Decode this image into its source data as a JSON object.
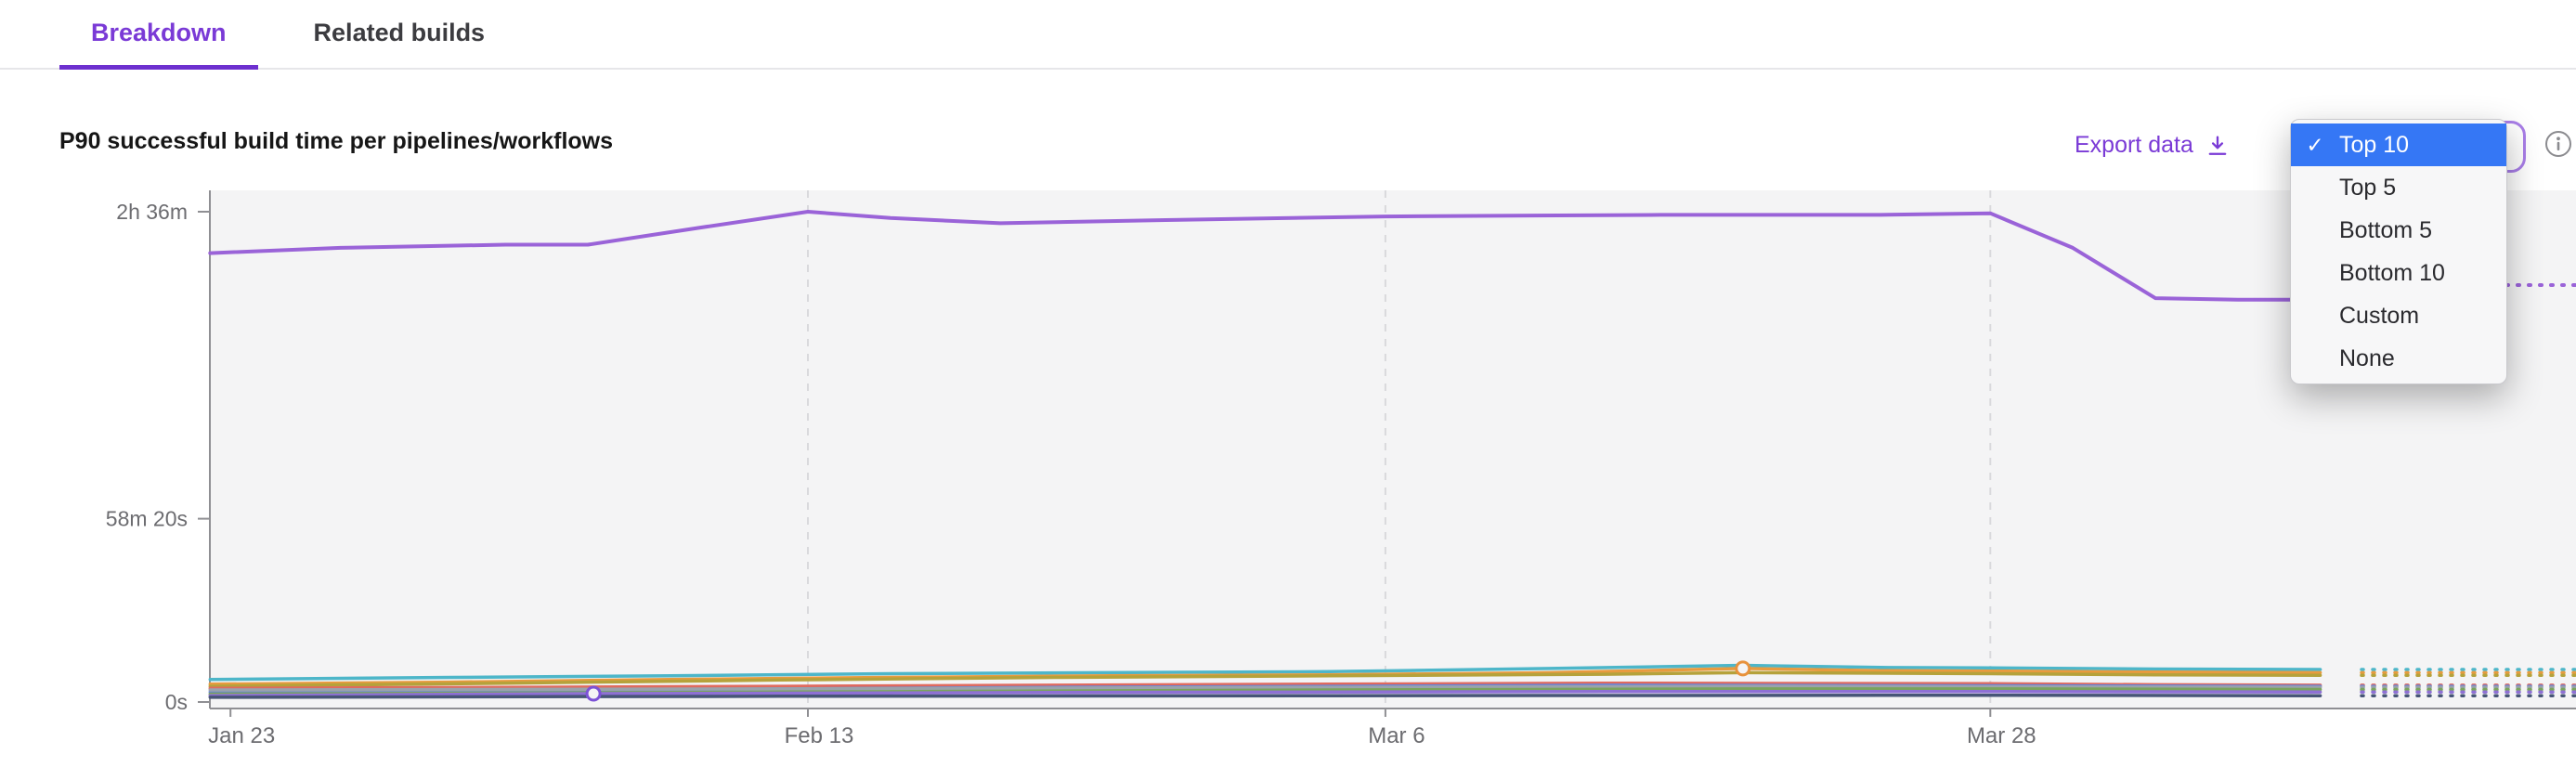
{
  "tabs": [
    {
      "label": "Breakdown",
      "active": true
    },
    {
      "label": "Related builds",
      "active": false
    }
  ],
  "header": {
    "title": "P90 successful build time per pipelines/workflows",
    "export_label": "Export data"
  },
  "filter_dropdown": {
    "selected": "Top 10",
    "options": [
      "Top 10",
      "Top 5",
      "Bottom 5",
      "Bottom 10",
      "Custom",
      "None"
    ]
  },
  "icons": {
    "download": "download-icon",
    "info": "info-icon",
    "check": "✓"
  },
  "colors": {
    "accent_purple": "#7a3ad6",
    "selection_blue": "#3577f5",
    "chart_background": "#f4f4f5",
    "main_series_purple": "#9a63d8"
  },
  "chart_data": {
    "type": "line",
    "title": "P90 successful build time per pipelines/workflows",
    "grid": {
      "vertical_dashed_at_days": [
        21,
        42,
        64
      ]
    },
    "x_axis": {
      "unit": "days_since_first_tick",
      "tick_days": [
        0,
        21,
        42,
        64
      ],
      "tick_labels": [
        "Jan 23",
        "Feb 13",
        "Mar 6",
        "Mar 28"
      ],
      "domain_days": [
        -0.75,
        85.3
      ]
    },
    "y_axis": {
      "unit": "seconds",
      "tick_values": [
        9360,
        3500,
        0
      ],
      "tick_labels": [
        "2h 36m",
        "58m 20s",
        "0s"
      ],
      "ylim": [
        0,
        9770
      ]
    },
    "legend": "none",
    "series": [
      {
        "name": "series-1-top",
        "color": "#9a63d8",
        "width": 4,
        "solid": [
          [
            -0.74,
            8570
          ],
          [
            4,
            8670
          ],
          [
            10,
            8730
          ],
          [
            13,
            8730
          ],
          [
            17,
            9050
          ],
          [
            21,
            9360
          ],
          [
            24,
            9240
          ],
          [
            28,
            9140
          ],
          [
            34,
            9200
          ],
          [
            42,
            9270
          ],
          [
            52,
            9300
          ],
          [
            60,
            9300
          ],
          [
            64,
            9330
          ],
          [
            67,
            8670
          ],
          [
            70,
            7710
          ],
          [
            73,
            7680
          ],
          [
            76,
            7680
          ]
        ],
        "dotted": [
          [
            77.5,
            7960
          ],
          [
            85.3,
            7960
          ]
        ]
      },
      {
        "name": "series-2",
        "color": "#4db6c9",
        "width": 3.5,
        "solid": [
          [
            -0.74,
            430
          ],
          [
            8,
            470
          ],
          [
            16,
            500
          ],
          [
            24,
            540
          ],
          [
            32,
            560
          ],
          [
            40,
            580
          ],
          [
            48,
            640
          ],
          [
            55,
            700
          ],
          [
            60,
            660
          ],
          [
            64,
            650
          ],
          [
            70,
            630
          ],
          [
            76,
            620
          ]
        ],
        "dotted": [
          [
            77.5,
            620
          ],
          [
            85.3,
            620
          ]
        ]
      },
      {
        "name": "series-3",
        "color": "#e89b3f",
        "width": 3.5,
        "solid": [
          [
            -0.74,
            340
          ],
          [
            8,
            380
          ],
          [
            16,
            430
          ],
          [
            24,
            470
          ],
          [
            32,
            500
          ],
          [
            40,
            520
          ],
          [
            48,
            560
          ],
          [
            55,
            640
          ],
          [
            60,
            600
          ],
          [
            64,
            590
          ],
          [
            70,
            570
          ],
          [
            76,
            560
          ]
        ],
        "dotted": [
          [
            77.5,
            560
          ],
          [
            85.3,
            560
          ]
        ]
      },
      {
        "name": "series-4",
        "color": "#b5a23b",
        "width": 3.5,
        "solid": [
          [
            -0.74,
            300
          ],
          [
            10,
            360
          ],
          [
            20,
            420
          ],
          [
            30,
            470
          ],
          [
            40,
            500
          ],
          [
            50,
            530
          ],
          [
            55,
            560
          ],
          [
            64,
            540
          ],
          [
            70,
            520
          ],
          [
            76,
            510
          ]
        ],
        "dotted": [
          [
            77.5,
            510
          ],
          [
            85.3,
            510
          ]
        ]
      },
      {
        "name": "series-5",
        "color": "#e06a5e",
        "width": 3.5,
        "solid": [
          [
            -0.74,
            260
          ],
          [
            10,
            280
          ],
          [
            20,
            300
          ],
          [
            30,
            320
          ],
          [
            40,
            340
          ],
          [
            50,
            360
          ],
          [
            64,
            350
          ],
          [
            70,
            330
          ],
          [
            76,
            320
          ]
        ],
        "dotted": [
          [
            77.5,
            320
          ],
          [
            85.3,
            320
          ]
        ]
      },
      {
        "name": "series-6",
        "color": "#6584da",
        "width": 3.5,
        "solid": [
          [
            -0.74,
            190
          ],
          [
            10,
            220
          ],
          [
            20,
            250
          ],
          [
            30,
            280
          ],
          [
            40,
            300
          ],
          [
            50,
            320
          ],
          [
            64,
            310
          ],
          [
            76,
            300
          ]
        ],
        "dotted": [
          [
            77.5,
            300
          ],
          [
            85.3,
            300
          ]
        ]
      },
      {
        "name": "series-7",
        "color": "#9aa2ac",
        "width": 3.5,
        "solid": [
          [
            -0.74,
            230
          ],
          [
            20,
            250
          ],
          [
            40,
            280
          ],
          [
            55,
            300
          ],
          [
            64,
            290
          ],
          [
            76,
            280
          ]
        ],
        "dotted": [
          [
            77.5,
            280
          ],
          [
            85.3,
            280
          ]
        ]
      },
      {
        "name": "series-8",
        "color": "#7aa45c",
        "width": 3.5,
        "solid": [
          [
            -0.74,
            150
          ],
          [
            20,
            190
          ],
          [
            40,
            230
          ],
          [
            55,
            250
          ],
          [
            64,
            250
          ],
          [
            76,
            240
          ]
        ],
        "dotted": [
          [
            77.5,
            240
          ],
          [
            85.3,
            240
          ]
        ]
      },
      {
        "name": "series-9",
        "color": "#8e70d4",
        "width": 3.5,
        "solid": [
          [
            -0.74,
            120
          ],
          [
            13,
            160
          ],
          [
            30,
            180
          ],
          [
            50,
            200
          ],
          [
            64,
            200
          ],
          [
            76,
            190
          ]
        ],
        "dotted": [
          [
            77.5,
            190
          ],
          [
            85.3,
            190
          ]
        ]
      },
      {
        "name": "series-10",
        "color": "#475577",
        "width": 3.5,
        "solid": [
          [
            -0.74,
            90
          ],
          [
            20,
            110
          ],
          [
            40,
            120
          ],
          [
            64,
            130
          ],
          [
            76,
            120
          ]
        ],
        "dotted": [
          [
            77.5,
            120
          ],
          [
            85.3,
            120
          ]
        ]
      }
    ],
    "markers": [
      {
        "day": 13.2,
        "value": 160,
        "color": "#7c52d6"
      },
      {
        "day": 55,
        "value": 640,
        "color": "#e8923c"
      }
    ]
  }
}
